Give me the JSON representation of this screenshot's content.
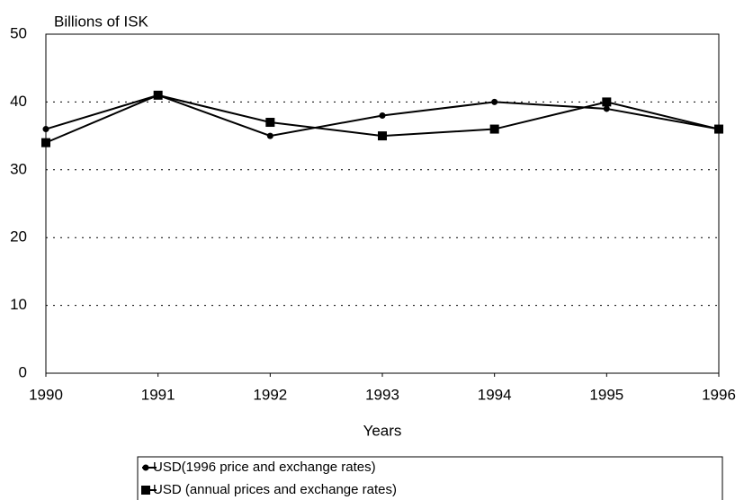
{
  "chart_data": {
    "type": "line",
    "y_label": "Billions of ISK",
    "x_label": "Years",
    "x": [
      1990,
      1991,
      1992,
      1993,
      1994,
      1995,
      1996
    ],
    "series": [
      {
        "name": "USD(1996 price and exchange rates)",
        "color": "#000000",
        "marker": "circle",
        "values": [
          36,
          41,
          35,
          38,
          40,
          39,
          36
        ]
      },
      {
        "name": "USD (annual prices and exchange rates)",
        "color": "#000000",
        "marker": "square",
        "values": [
          34,
          41,
          37,
          35,
          36,
          40,
          36
        ]
      }
    ],
    "xlim": [
      1990,
      1996
    ],
    "xticks": [
      1990,
      1991,
      1992,
      1993,
      1994,
      1995,
      1996
    ],
    "ylim": [
      0,
      50
    ],
    "yticks": [
      0,
      10,
      20,
      30,
      40,
      50
    ],
    "grid": true
  }
}
